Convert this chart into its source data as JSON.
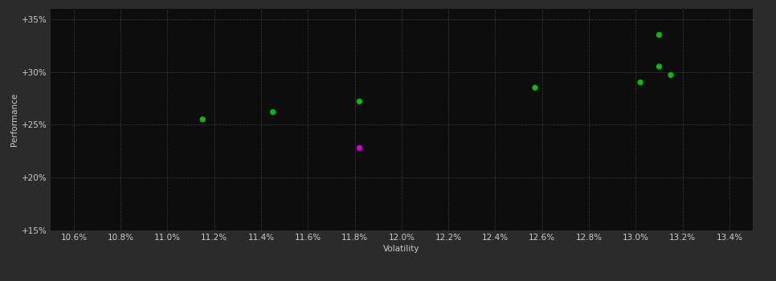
{
  "outer_bg_color": "#2b2b2b",
  "plot_bg_color": "#0d0d0d",
  "grid_color": "#3a3a3a",
  "text_color": "#cccccc",
  "xlabel": "Volatility",
  "ylabel": "Performance",
  "xlim": [
    10.5,
    13.5
  ],
  "ylim": [
    15.0,
    36.0
  ],
  "xticks": [
    10.6,
    10.8,
    11.0,
    11.2,
    11.4,
    11.6,
    11.8,
    12.0,
    12.2,
    12.4,
    12.6,
    12.8,
    13.0,
    13.2,
    13.4
  ],
  "yticks": [
    15.0,
    20.0,
    25.0,
    30.0,
    35.0
  ],
  "ytick_labels": [
    "+15%",
    "+20%",
    "+25%",
    "+30%",
    "+35%"
  ],
  "green_points": [
    [
      11.15,
      25.5
    ],
    [
      11.45,
      26.2
    ],
    [
      11.82,
      27.2
    ],
    [
      12.57,
      28.5
    ],
    [
      13.02,
      29.0
    ],
    [
      13.1,
      30.5
    ],
    [
      13.15,
      29.7
    ],
    [
      13.1,
      33.5
    ]
  ],
  "magenta_points": [
    [
      11.82,
      22.8
    ]
  ],
  "green_color": "#00bb00",
  "magenta_color": "#cc00cc",
  "marker_size": 28,
  "font_size": 7.5,
  "axis_label_fontsize": 7.5
}
